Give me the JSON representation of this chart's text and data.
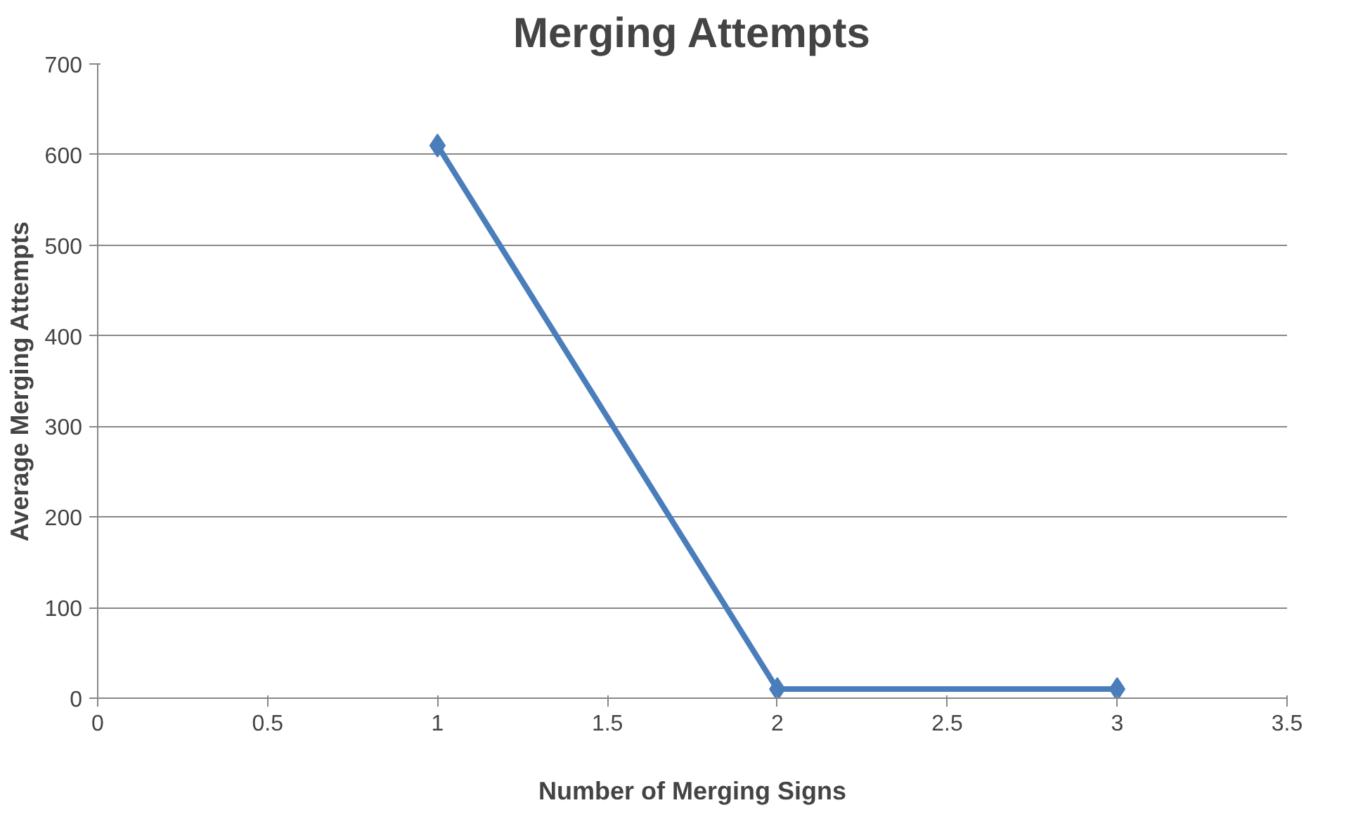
{
  "chart_data": {
    "type": "line",
    "title": "Merging Attempts",
    "xlabel": "Number of Merging Signs",
    "ylabel": "Average Merging Attempts",
    "x": [
      1,
      2,
      3
    ],
    "series": [
      {
        "color": "#4a7ebb",
        "values": [
          610,
          10,
          10
        ]
      }
    ],
    "xlim": [
      0,
      3.5
    ],
    "xticks": [
      0,
      0.5,
      1,
      1.5,
      2,
      2.5,
      3,
      3.5
    ],
    "ylim": [
      0,
      700
    ],
    "yticks": [
      0,
      100,
      200,
      300,
      400,
      500,
      600,
      700
    ],
    "grid": "y",
    "marker": "diamond",
    "line_style": "solid"
  }
}
